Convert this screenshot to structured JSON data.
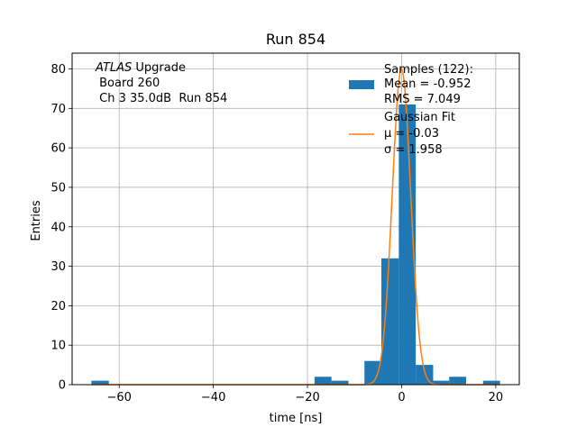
{
  "chart_data": {
    "type": "bar",
    "title": "Run 854",
    "xlabel": "time [ns]",
    "ylabel": "Entries",
    "xlim": [
      -70,
      25
    ],
    "ylim": [
      0,
      84
    ],
    "grid": true,
    "xticks": [
      -60,
      -40,
      -20,
      0,
      20
    ],
    "yticks": [
      0,
      10,
      20,
      30,
      40,
      50,
      60,
      70,
      80
    ],
    "xtick_labels": [
      "−60",
      "−40",
      "−20",
      "0",
      "20"
    ],
    "ytick_labels": [
      "0",
      "10",
      "20",
      "30",
      "40",
      "50",
      "60",
      "70",
      "80"
    ],
    "annotation": {
      "italic": "ATLAS",
      "rest": " Upgrade",
      "line2": " Board 260",
      "line3": " Ch 3 35.0dB  Run 854"
    },
    "histogram": {
      "name": "Samples (122):",
      "color": "#1f77b4",
      "bins": [
        {
          "x0": -65.9,
          "x1": -62.2,
          "count": 1
        },
        {
          "x0": -18.5,
          "x1": -14.9,
          "count": 2
        },
        {
          "x0": -14.9,
          "x1": -11.3,
          "count": 1
        },
        {
          "x0": -7.9,
          "x1": -4.3,
          "count": 6
        },
        {
          "x0": -4.3,
          "x1": -0.6,
          "count": 32
        },
        {
          "x0": -0.6,
          "x1": 3.0,
          "count": 71
        },
        {
          "x0": 3.0,
          "x1": 6.7,
          "count": 5
        },
        {
          "x0": 6.7,
          "x1": 10.1,
          "count": 1
        },
        {
          "x0": 10.1,
          "x1": 13.7,
          "count": 2
        },
        {
          "x0": 17.3,
          "x1": 20.9,
          "count": 1
        }
      ]
    },
    "fit": {
      "name": "Gaussian Fit",
      "color": "#ff7f0e",
      "mu": -0.03,
      "sigma": 1.958,
      "amplitude": 80,
      "x_range": [
        -65.9,
        20.9
      ]
    },
    "legend": {
      "placement": "top-right",
      "hist_lines": [
        "Samples (122):",
        "Mean = -0.952",
        "RMS = 7.049"
      ],
      "fit_lines": [
        "Gaussian Fit",
        "μ = -0.03",
        "σ = 1.958"
      ]
    }
  }
}
